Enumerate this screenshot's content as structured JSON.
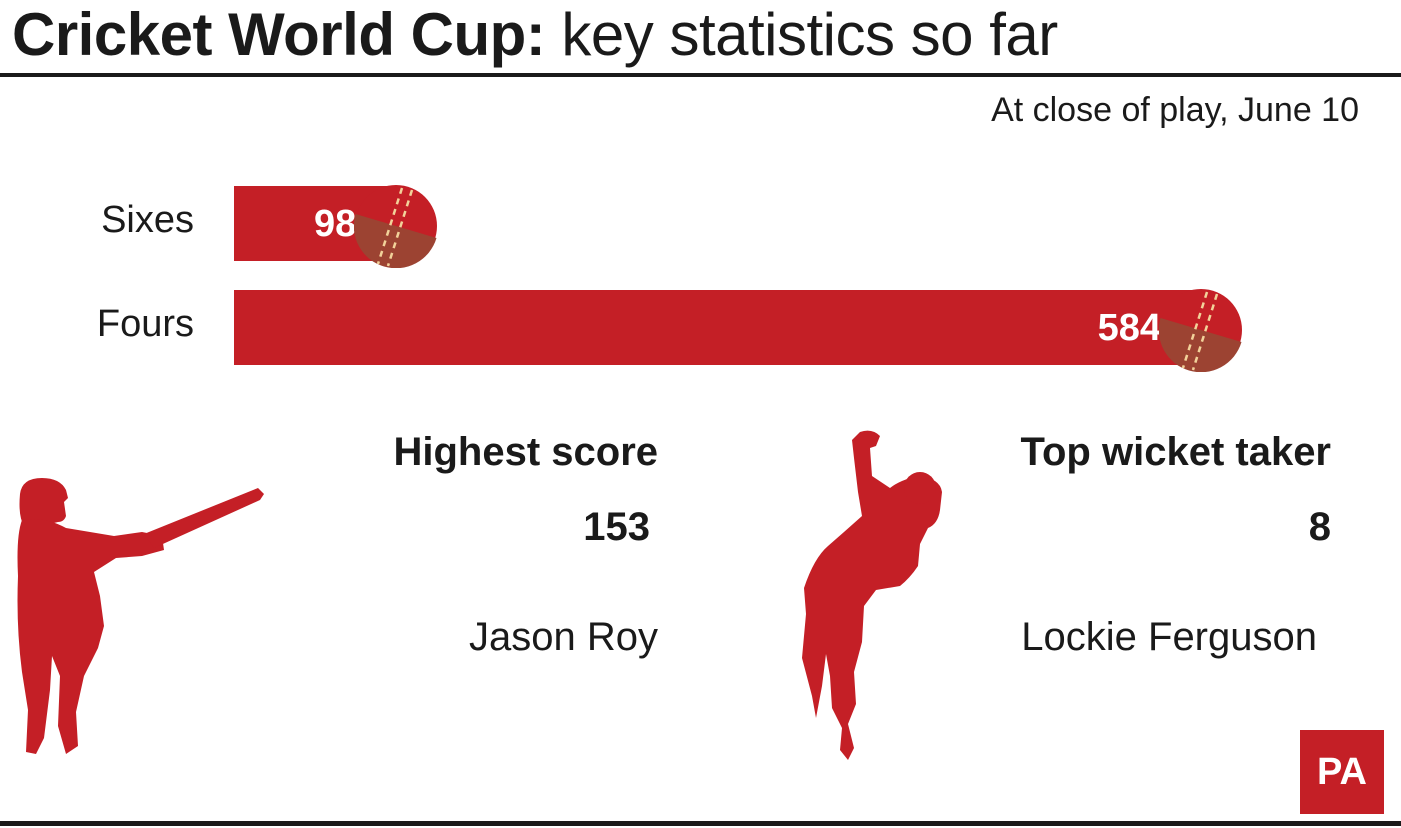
{
  "header": {
    "title_bold": "Cricket World Cup:",
    "title_regular": " key statistics so far",
    "subtitle": "At close of play, June 10"
  },
  "chart_data": {
    "type": "bar",
    "orientation": "horizontal",
    "categories": [
      "Sixes",
      "Fours"
    ],
    "values": [
      98,
      584
    ],
    "value_labels": [
      "98",
      "584"
    ],
    "bar_color": "#c41f26",
    "title": "Cricket World Cup: key statistics so far",
    "subtitle": "At close of play, June 10",
    "grid": false,
    "legend": "none"
  },
  "stats": {
    "highest_score": {
      "heading": "Highest score",
      "value": "153",
      "name": "Jason Roy"
    },
    "top_wicket_taker": {
      "heading": "Top wicket taker",
      "value": "8",
      "name": "Lockie Ferguson"
    }
  },
  "icons": {
    "batsman": "batsman-silhouette-icon",
    "bowler": "bowler-silhouette-icon",
    "ball": "cricket-ball-icon"
  },
  "colors": {
    "accent": "#c41f26",
    "ball_dark": "#9c4332",
    "seam": "#f2d29a",
    "text": "#1a1a1a"
  },
  "logo": {
    "text": "PA"
  }
}
